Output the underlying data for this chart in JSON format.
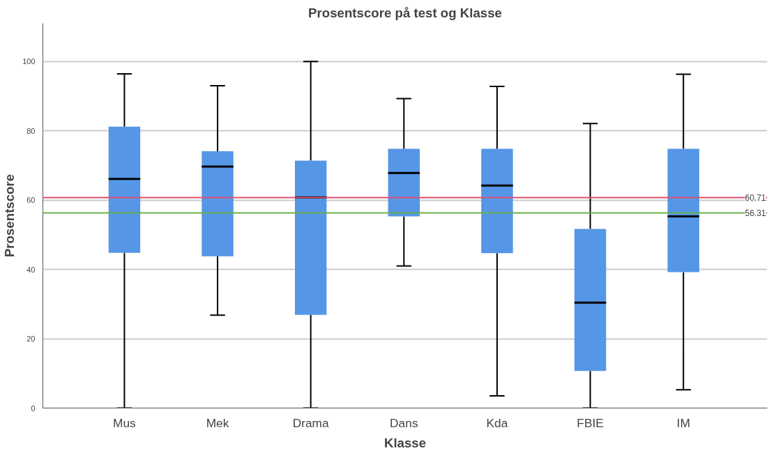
{
  "chart_data": {
    "type": "box",
    "title": "Prosentscore på test og Klasse",
    "xlabel": "Klasse",
    "ylabel": "Prosentscore",
    "categories": [
      "Mus",
      "Mek",
      "Drama",
      "Dans",
      "Kda",
      "FBIE",
      "IM"
    ],
    "series": [
      {
        "color": "#5596e6",
        "boxes": [
          {
            "low": 0,
            "q1": 44.8,
            "median": 66.1,
            "q3": 81.2,
            "high": 96.4
          },
          {
            "low": 26.8,
            "q1": 43.8,
            "median": 69.7,
            "q3": 74.1,
            "high": 93.0
          },
          {
            "low": 0,
            "q1": 26.9,
            "median": 60.8,
            "q3": 71.4,
            "high": 100
          },
          {
            "low": 41.0,
            "q1": 55.3,
            "median": 67.8,
            "q3": 74.8,
            "high": 89.3
          },
          {
            "low": 3.5,
            "q1": 44.7,
            "median": 64.2,
            "q3": 74.8,
            "high": 92.8
          },
          {
            "low": 0,
            "q1": 10.7,
            "median": 30.4,
            "q3": 51.7,
            "high": 82.1
          },
          {
            "low": 5.3,
            "q1": 39.2,
            "median": 55.3,
            "q3": 74.8,
            "high": 96.3
          }
        ]
      }
    ],
    "ylim": [
      0,
      111
    ],
    "yticks": [
      0,
      20,
      40,
      60,
      80,
      100
    ],
    "grid": "y",
    "ref_lines": [
      {
        "axis": "y",
        "value": 60.71,
        "label": "60.71",
        "color": "#e0506e"
      },
      {
        "axis": "y",
        "value": 56.31,
        "label": "56.31",
        "color": "#6ab04c"
      }
    ]
  }
}
